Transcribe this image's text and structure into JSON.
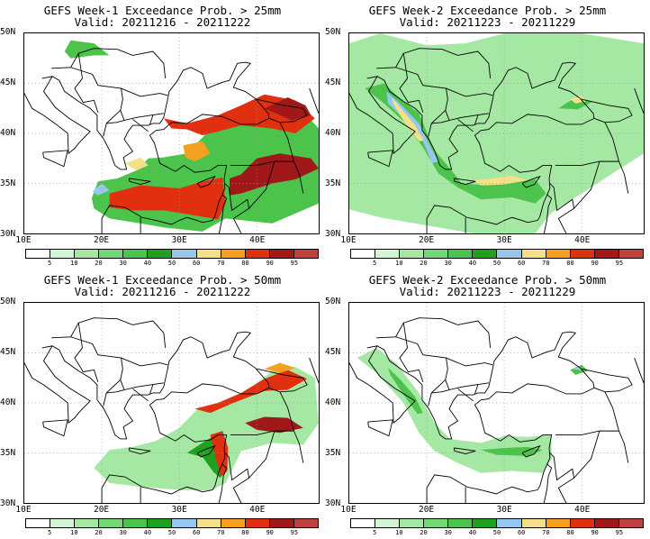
{
  "panels": [
    {
      "line1": "GEFS Week-1 Exceedance Prob. > 25mm",
      "line2": "Valid: 20211216 - 20211222"
    },
    {
      "line1": "GEFS Week-2 Exceedance Prob. > 25mm",
      "line2": "Valid: 20211223 - 20211229"
    },
    {
      "line1": "GEFS Week-1 Exceedance Prob. > 50mm",
      "line2": "Valid: 20211216 - 20211222"
    },
    {
      "line1": "GEFS Week-2 Exceedance Prob. > 50mm",
      "line2": "Valid: 20211223 - 20211229"
    }
  ],
  "lat_labels": [
    "50N",
    "45N",
    "40N",
    "35N",
    "30N"
  ],
  "lon_labels": [
    "10E",
    "20E",
    "30E",
    "40E"
  ],
  "colorbar": {
    "labels": [
      "5",
      "10",
      "20",
      "30",
      "40",
      "50",
      "60",
      "70",
      "80",
      "90",
      "95"
    ],
    "colors": [
      "#ffffff",
      "#d4f5d4",
      "#a4e8a4",
      "#73d873",
      "#4cc44c",
      "#1fa01f",
      "#96c8ef",
      "#f5e08a",
      "#f5a020",
      "#e03010",
      "#a01818",
      "#c04040"
    ]
  },
  "map_colors": {
    "low": "#a4e8a4",
    "mid": "#4cc44c",
    "high": "#1fa01f",
    "blue": "#96c8ef",
    "yellow": "#f5e08a",
    "orange": "#f5a020",
    "red": "#e03010",
    "darkred": "#a01818"
  }
}
